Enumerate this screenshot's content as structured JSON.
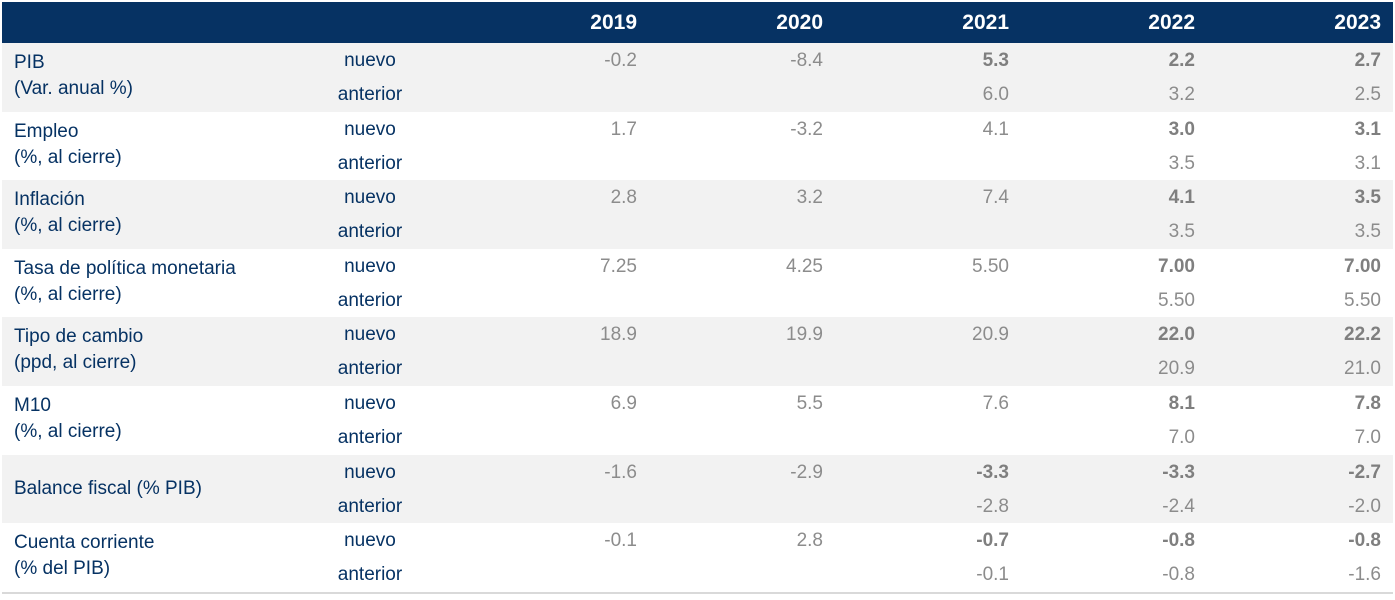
{
  "header": {
    "years": [
      "2019",
      "2020",
      "2021",
      "2022",
      "2023"
    ]
  },
  "sublabels": {
    "new": "nuevo",
    "prev": "anterior"
  },
  "rows": [
    {
      "label_line1": "PIB",
      "label_line2": "(Var. anual %)",
      "nuevo": [
        "-0.2",
        "-8.4",
        "5.3",
        "2.2",
        "2.7"
      ],
      "nuevo_bold": [
        false,
        false,
        true,
        true,
        true
      ],
      "anterior": [
        "",
        "",
        "6.0",
        "3.2",
        "2.5"
      ]
    },
    {
      "label_line1": "Empleo",
      "label_line2": "(%, al cierre)",
      "nuevo": [
        "1.7",
        "-3.2",
        "4.1",
        "3.0",
        "3.1"
      ],
      "nuevo_bold": [
        false,
        false,
        false,
        true,
        true
      ],
      "anterior": [
        "",
        "",
        "",
        "3.5",
        "3.1"
      ]
    },
    {
      "label_line1": "Inflación",
      "label_line2": "(%, al cierre)",
      "nuevo": [
        "2.8",
        "3.2",
        "7.4",
        "4.1",
        "3.5"
      ],
      "nuevo_bold": [
        false,
        false,
        false,
        true,
        true
      ],
      "anterior": [
        "",
        "",
        "",
        "3.5",
        "3.5"
      ]
    },
    {
      "label_line1": "Tasa de política monetaria",
      "label_line2": "(%, al cierre)",
      "nuevo": [
        "7.25",
        "4.25",
        "5.50",
        "7.00",
        "7.00"
      ],
      "nuevo_bold": [
        false,
        false,
        false,
        true,
        true
      ],
      "anterior": [
        "",
        "",
        "",
        "5.50",
        "5.50"
      ]
    },
    {
      "label_line1": "Tipo de cambio",
      "label_line2": "(ppd, al cierre)",
      "nuevo": [
        "18.9",
        "19.9",
        "20.9",
        "22.0",
        "22.2"
      ],
      "nuevo_bold": [
        false,
        false,
        false,
        true,
        true
      ],
      "anterior": [
        "",
        "",
        "",
        "20.9",
        "21.0"
      ]
    },
    {
      "label_line1": "M10",
      "label_line2": "(%, al cierre)",
      "nuevo": [
        "6.9",
        "5.5",
        "7.6",
        "8.1",
        "7.8"
      ],
      "nuevo_bold": [
        false,
        false,
        false,
        true,
        true
      ],
      "anterior": [
        "",
        "",
        "",
        "7.0",
        "7.0"
      ]
    },
    {
      "label_line1": "Balance fiscal (% PIB)",
      "label_line2": "",
      "nuevo": [
        "-1.6",
        "-2.9",
        "-3.3",
        "-3.3",
        "-2.7"
      ],
      "nuevo_bold": [
        false,
        false,
        true,
        true,
        true
      ],
      "anterior": [
        "",
        "",
        "-2.8",
        "-2.4",
        "-2.0"
      ]
    },
    {
      "label_line1": "Cuenta corriente",
      "label_line2": "(% del PIB)",
      "nuevo": [
        "-0.1",
        "2.8",
        "-0.7",
        "-0.8",
        "-0.8"
      ],
      "nuevo_bold": [
        false,
        false,
        true,
        true,
        true
      ],
      "anterior": [
        "",
        "",
        "-0.1",
        "-0.8",
        "-1.6"
      ]
    }
  ],
  "colors": {
    "header_bg": "#063263",
    "label_text": "#063263",
    "value_text": "#8c8c8c",
    "shade_bg": "#f2f2f2"
  }
}
